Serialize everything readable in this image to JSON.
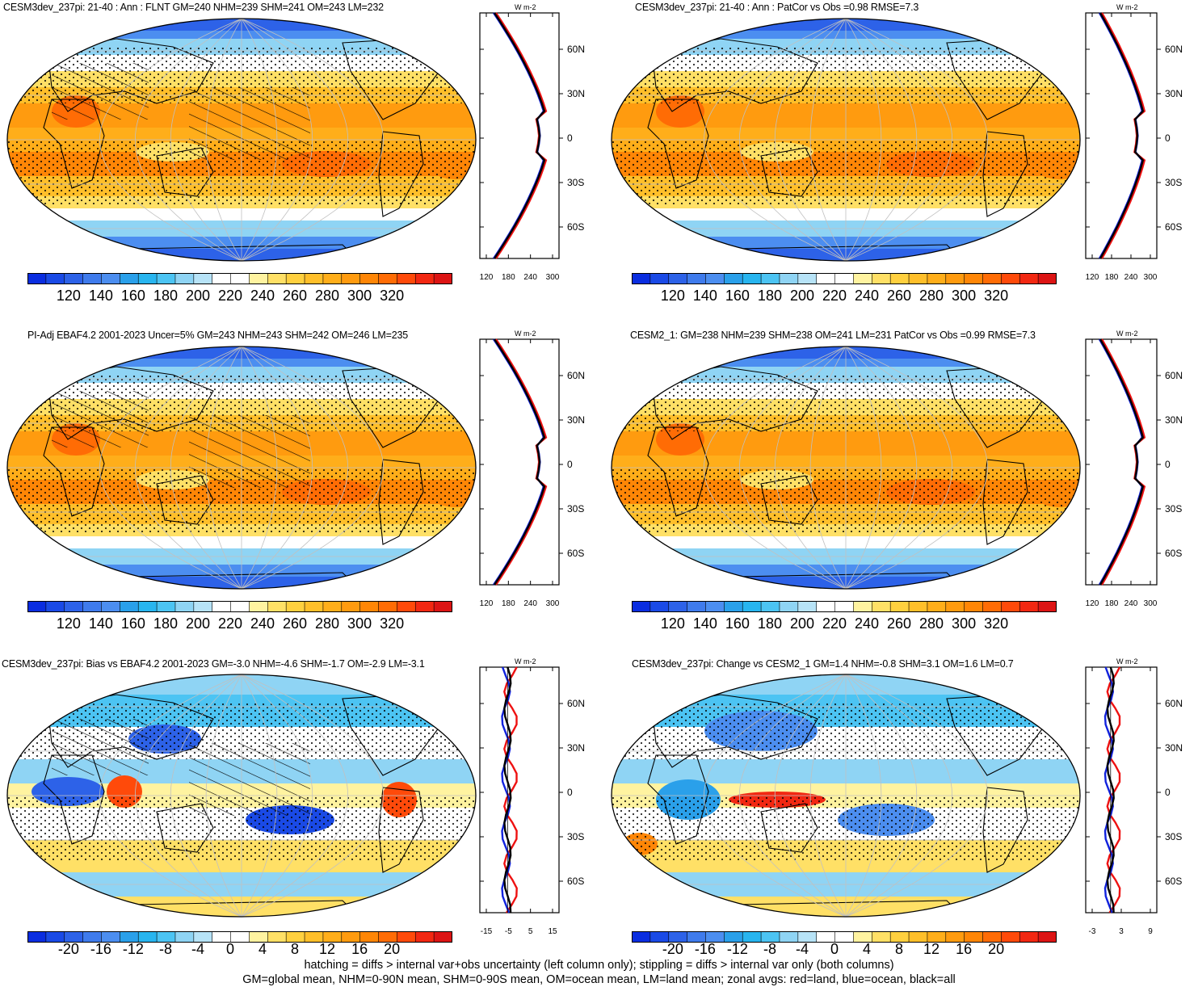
{
  "panels": [
    {
      "id": "p1",
      "title": "CESM3dev_237pi: 21-40 : Ann : FLNT GM=240 NHM=239 SHM=241 OM=243 LM=232",
      "kind": "abs",
      "stipple": true,
      "hatch": true
    },
    {
      "id": "p2",
      "title": "CESM3dev_237pi: 21-40 : Ann : PatCor vs Obs =0.98 RMSE=7.3",
      "kind": "abs",
      "stipple": true,
      "hatch": false
    },
    {
      "id": "p3",
      "title": "PI-Adj EBAF4.2 2001-2023 Uncer=5% GM=243 NHM=243 SHM=242 OM=246 LM=235",
      "kind": "abs",
      "stipple": true,
      "hatch": true
    },
    {
      "id": "p4",
      "title": "CESM2_1: GM=238 NHM=239 SHM=238 OM=241 LM=231 PatCor vs Obs =0.99 RMSE=7.3",
      "kind": "abs",
      "stipple": true,
      "hatch": false
    },
    {
      "id": "p5",
      "title": "CESM3dev_237pi: Bias vs EBAF4.2 2001-2023 GM=-3.0 NHM=-4.6 SHM=-1.7 OM=-2.9 LM=-3.1",
      "kind": "diff",
      "stipple": true,
      "hatch": true
    },
    {
      "id": "p6",
      "title": "CESM3dev_237pi: Change vs CESM2_1 GM=1.4 NHM=-0.8 SHM=3.1 OM=1.6 LM=0.7",
      "kind": "diff",
      "stipple": true,
      "hatch": false
    }
  ],
  "colorbars": {
    "abs": {
      "labels": [
        "120",
        "140",
        "160",
        "180",
        "200",
        "220",
        "240",
        "260",
        "280",
        "300",
        "320"
      ],
      "colors": [
        "#0a2de0",
        "#1a4ae6",
        "#2d62e8",
        "#3f7bec",
        "#4c8ef0",
        "#2aa0ea",
        "#28b5ef",
        "#4cc4f3",
        "#8fd4f4",
        "#b7e3f7",
        "#ffffff",
        "#ffffff",
        "#fff3a0",
        "#ffe066",
        "#ffd03f",
        "#ffbf2a",
        "#ffae1a",
        "#ff9b0f",
        "#ff8606",
        "#ff6c05",
        "#ff4a0a",
        "#f22812",
        "#dc1414"
      ]
    },
    "diff": {
      "labels": [
        "-20",
        "-16",
        "-12",
        "-8",
        "-4",
        "0",
        "4",
        "8",
        "12",
        "16",
        "20"
      ],
      "colors": [
        "#0a2de0",
        "#1a4ae6",
        "#2d62e8",
        "#3f7bec",
        "#4c8ef0",
        "#2aa0ea",
        "#28b5ef",
        "#4cc4f3",
        "#8fd4f4",
        "#b7e3f7",
        "#ffffff",
        "#ffffff",
        "#fff3a0",
        "#ffe066",
        "#ffd03f",
        "#ffbf2a",
        "#ffae1a",
        "#ff9b0f",
        "#ff8606",
        "#ff6c05",
        "#ff4a0a",
        "#f22812",
        "#dc1414"
      ]
    }
  },
  "zonal": {
    "units": "W m-2",
    "lat_labels": [
      "60N",
      "30N",
      "0",
      "30S",
      "60S"
    ],
    "abs_xticks": [
      "120",
      "180",
      "240",
      "300"
    ],
    "bias_xticks": [
      "-15",
      "-5",
      "5",
      "15"
    ],
    "change_xticks": [
      "-3",
      "3",
      "9"
    ],
    "series_colors": {
      "land": "#ee1111",
      "ocean": "#1122dd",
      "all": "#000000"
    }
  },
  "colors": {
    "land_gray": "#c8c8c8",
    "coast": "#000000",
    "grid": "#c0c0c0"
  },
  "footer": {
    "line1": "hatching = diffs > internal var+obs uncertainty (left column only); stippling = diffs > internal var only (both columns)",
    "line2": "GM=global mean, NHM=0-90N mean, SHM=0-90S mean, OM=ocean mean, LM=land mean; zonal avgs: red=land, blue=ocean, black=all"
  }
}
